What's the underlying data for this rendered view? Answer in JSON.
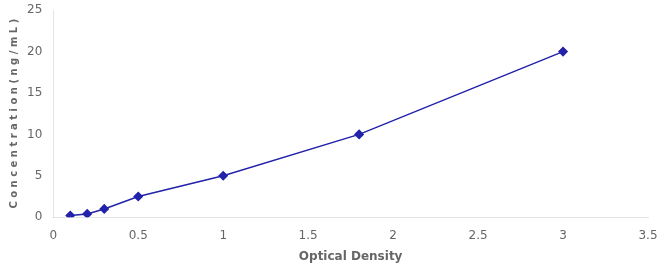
{
  "chart_data": {
    "type": "line",
    "x": [
      0.1,
      0.2,
      0.3,
      0.5,
      1.0,
      1.8,
      3.0
    ],
    "values": [
      0.2,
      0.4,
      1.0,
      2.5,
      5.0,
      10.0,
      20.0
    ],
    "color": "#2222aa",
    "marker": "diamond",
    "line_style": "solid",
    "xlabel": "Optical Density",
    "ylabel": "C o n c e n t r a t i o n ( n g / m L )",
    "xlim": [
      0,
      3.5
    ],
    "ylim": [
      0,
      25
    ],
    "xticks": [
      0,
      0.5,
      1.0,
      1.5,
      2.0,
      2.5,
      3.0,
      3.5
    ],
    "yticks": [
      0,
      5,
      10,
      15,
      20,
      25
    ],
    "grid": false
  }
}
